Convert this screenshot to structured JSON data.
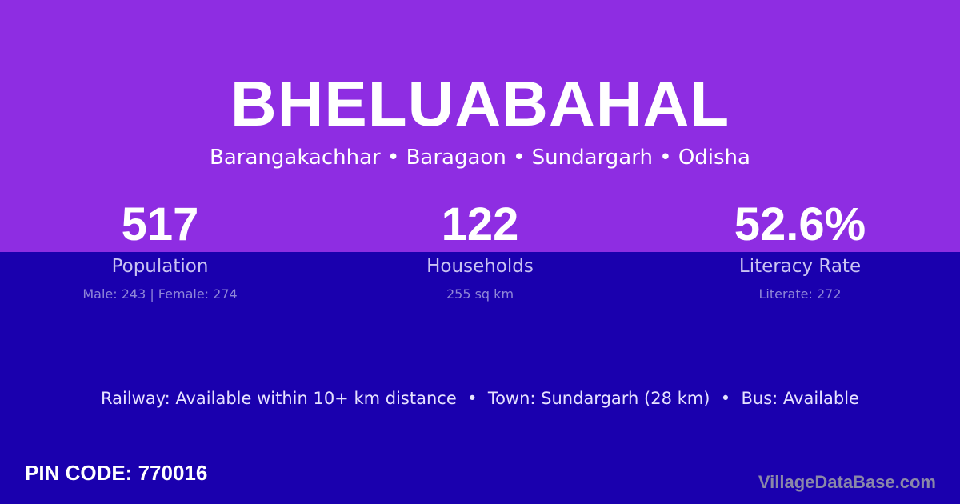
{
  "colors": {
    "top": "#8e2de2",
    "bottom": "#1a00ae"
  },
  "village": "BHELUABAHAL",
  "location": "Barangakachhar • Baragaon • Sundargarh • Odisha",
  "stats": [
    {
      "value": "517",
      "label": "Population",
      "detail": "Male: 243 | Female: 274"
    },
    {
      "value": "122",
      "label": "Households",
      "detail": "255 sq km"
    },
    {
      "value": "52.6%",
      "label": "Literacy Rate",
      "detail": "Literate: 272"
    }
  ],
  "info": "Railway: Available within 10+ km distance  •  Town: Sundargarh (28 km)  •  Bus: Available",
  "pin": "PIN CODE: 770016",
  "brand": "VillageDataBase.com"
}
